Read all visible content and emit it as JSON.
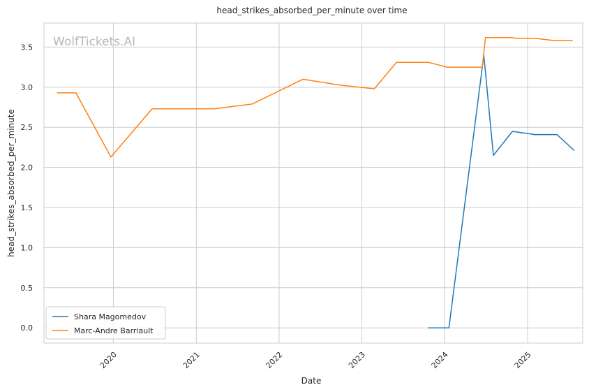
{
  "chart_data": {
    "type": "line",
    "title": "head_strikes_absorbed_per_minute over time",
    "xlabel": "Date",
    "ylabel": "head_strikes_absorbed_per_minute",
    "watermark": "WolfTickets.AI",
    "xlim": [
      "2019-03-01",
      "2025-09-01"
    ],
    "ylim": [
      -0.19,
      3.8
    ],
    "x_ticks": [
      "2020-01-01",
      "2021-01-01",
      "2022-01-01",
      "2023-01-01",
      "2024-01-01",
      "2025-01-01"
    ],
    "x_tick_labels": [
      "2020",
      "2021",
      "2022",
      "2023",
      "2024",
      "2025"
    ],
    "y_ticks": [
      0.0,
      0.5,
      1.0,
      1.5,
      2.0,
      2.5,
      3.0,
      3.5
    ],
    "y_tick_labels": [
      "0.0",
      "0.5",
      "1.0",
      "1.5",
      "2.0",
      "2.5",
      "3.0",
      "3.5"
    ],
    "grid": true,
    "legend_position": "lower-left",
    "series": [
      {
        "name": "Shara Magomedov",
        "color": "#1f77b4",
        "x": [
          "2023-10-21",
          "2024-01-20",
          "2024-06-22",
          "2024-08-03",
          "2024-10-26",
          "2025-02-01",
          "2025-05-10",
          "2025-07-26"
        ],
        "values": [
          0.0,
          0.0,
          3.4,
          2.15,
          2.45,
          2.41,
          2.41,
          2.21
        ]
      },
      {
        "name": "Marc-Andre Barriault",
        "color": "#ff7f0e",
        "x": [
          "2019-04-27",
          "2019-07-20",
          "2019-12-21",
          "2020-06-20",
          "2021-03-20",
          "2021-09-04",
          "2022-04-16",
          "2022-09-17",
          "2023-02-25",
          "2023-06-03",
          "2023-10-21",
          "2024-01-13",
          "2024-06-15",
          "2024-06-29",
          "2024-10-19",
          "2024-11-09",
          "2025-02-01",
          "2025-05-03",
          "2025-07-19"
        ],
        "values": [
          2.93,
          2.93,
          2.13,
          2.73,
          2.73,
          2.79,
          3.1,
          3.03,
          2.98,
          3.31,
          3.31,
          3.25,
          3.25,
          3.62,
          3.62,
          3.61,
          3.61,
          3.58,
          3.58
        ]
      }
    ]
  }
}
